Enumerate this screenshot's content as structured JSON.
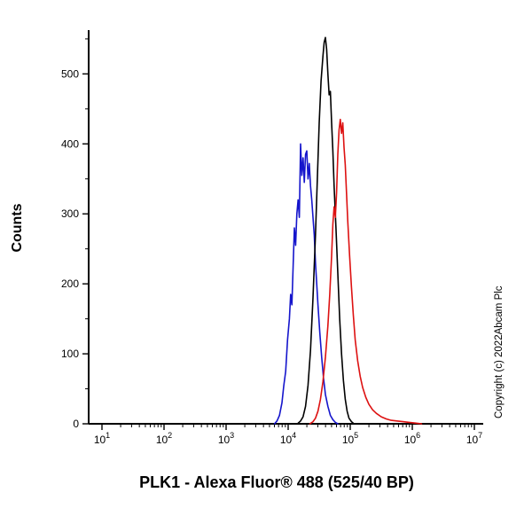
{
  "figure": {
    "xlabel": "PLK1 - Alexa Fluor® 488  (525/40 BP)",
    "ylabel": "Counts",
    "copyright": "Copyright (c) 2022Abcam Plc"
  },
  "chart_data": {
    "type": "line",
    "subtype": "flow-cytometry-histogram",
    "title": "",
    "xlabel": "PLK1 - Alexa Fluor® 488  (525/40 BP)",
    "ylabel": "Counts",
    "x_scale": "log10",
    "x_range_exponents": [
      1,
      7
    ],
    "x_tick_exponents": [
      1,
      2,
      3,
      4,
      5,
      6,
      7
    ],
    "ylim": [
      0,
      560
    ],
    "y_major_ticks": [
      0,
      100,
      200,
      300,
      400,
      500
    ],
    "y_minor_step": 50,
    "grid": false,
    "legend": "none",
    "annotations": {
      "copyright": "Copyright (c) 2022Abcam Plc"
    },
    "series": [
      {
        "name": "blue",
        "color": "#1515cc",
        "points": [
          [
            3.78,
            0
          ],
          [
            3.82,
            4
          ],
          [
            3.86,
            12
          ],
          [
            3.9,
            30
          ],
          [
            3.93,
            55
          ],
          [
            3.96,
            75
          ],
          [
            3.99,
            120
          ],
          [
            4.02,
            150
          ],
          [
            4.04,
            185
          ],
          [
            4.06,
            170
          ],
          [
            4.08,
            225
          ],
          [
            4.1,
            280
          ],
          [
            4.12,
            255
          ],
          [
            4.14,
            300
          ],
          [
            4.16,
            320
          ],
          [
            4.18,
            295
          ],
          [
            4.2,
            400
          ],
          [
            4.22,
            355
          ],
          [
            4.24,
            380
          ],
          [
            4.26,
            345
          ],
          [
            4.28,
            385
          ],
          [
            4.3,
            390
          ],
          [
            4.32,
            350
          ],
          [
            4.34,
            372
          ],
          [
            4.36,
            340
          ],
          [
            4.38,
            320
          ],
          [
            4.4,
            295
          ],
          [
            4.42,
            270
          ],
          [
            4.44,
            230
          ],
          [
            4.46,
            200
          ],
          [
            4.48,
            170
          ],
          [
            4.51,
            130
          ],
          [
            4.54,
            95
          ],
          [
            4.57,
            65
          ],
          [
            4.6,
            42
          ],
          [
            4.64,
            25
          ],
          [
            4.68,
            12
          ],
          [
            4.72,
            6
          ],
          [
            4.76,
            2
          ],
          [
            4.8,
            0
          ]
        ]
      },
      {
        "name": "black",
        "color": "#000000",
        "points": [
          [
            4.15,
            0
          ],
          [
            4.2,
            4
          ],
          [
            4.24,
            10
          ],
          [
            4.28,
            25
          ],
          [
            4.32,
            55
          ],
          [
            4.36,
            105
          ],
          [
            4.4,
            180
          ],
          [
            4.44,
            270
          ],
          [
            4.47,
            350
          ],
          [
            4.5,
            430
          ],
          [
            4.53,
            490
          ],
          [
            4.56,
            525
          ],
          [
            4.58,
            545
          ],
          [
            4.6,
            552
          ],
          [
            4.62,
            535
          ],
          [
            4.64,
            500
          ],
          [
            4.66,
            470
          ],
          [
            4.68,
            475
          ],
          [
            4.7,
            430
          ],
          [
            4.72,
            390
          ],
          [
            4.74,
            340
          ],
          [
            4.77,
            280
          ],
          [
            4.8,
            215
          ],
          [
            4.83,
            150
          ],
          [
            4.86,
            100
          ],
          [
            4.89,
            62
          ],
          [
            4.92,
            35
          ],
          [
            4.95,
            18
          ],
          [
            4.98,
            8
          ],
          [
            5.02,
            3
          ],
          [
            5.06,
            0
          ]
        ]
      },
      {
        "name": "red",
        "color": "#dd1111",
        "points": [
          [
            4.35,
            0
          ],
          [
            4.4,
            3
          ],
          [
            4.44,
            8
          ],
          [
            4.48,
            18
          ],
          [
            4.52,
            35
          ],
          [
            4.56,
            60
          ],
          [
            4.6,
            95
          ],
          [
            4.64,
            140
          ],
          [
            4.67,
            185
          ],
          [
            4.7,
            240
          ],
          [
            4.72,
            285
          ],
          [
            4.74,
            310
          ],
          [
            4.76,
            295
          ],
          [
            4.78,
            330
          ],
          [
            4.8,
            385
          ],
          [
            4.82,
            420
          ],
          [
            4.84,
            435
          ],
          [
            4.86,
            415
          ],
          [
            4.88,
            430
          ],
          [
            4.9,
            395
          ],
          [
            4.92,
            370
          ],
          [
            4.94,
            330
          ],
          [
            4.96,
            290
          ],
          [
            4.99,
            240
          ],
          [
            5.02,
            195
          ],
          [
            5.05,
            155
          ],
          [
            5.08,
            120
          ],
          [
            5.12,
            90
          ],
          [
            5.16,
            68
          ],
          [
            5.2,
            52
          ],
          [
            5.25,
            38
          ],
          [
            5.3,
            28
          ],
          [
            5.36,
            20
          ],
          [
            5.42,
            15
          ],
          [
            5.5,
            10
          ],
          [
            5.58,
            7
          ],
          [
            5.66,
            5
          ],
          [
            5.75,
            4
          ],
          [
            5.85,
            3
          ],
          [
            5.95,
            2
          ],
          [
            6.05,
            1
          ],
          [
            6.15,
            0
          ]
        ]
      }
    ]
  }
}
